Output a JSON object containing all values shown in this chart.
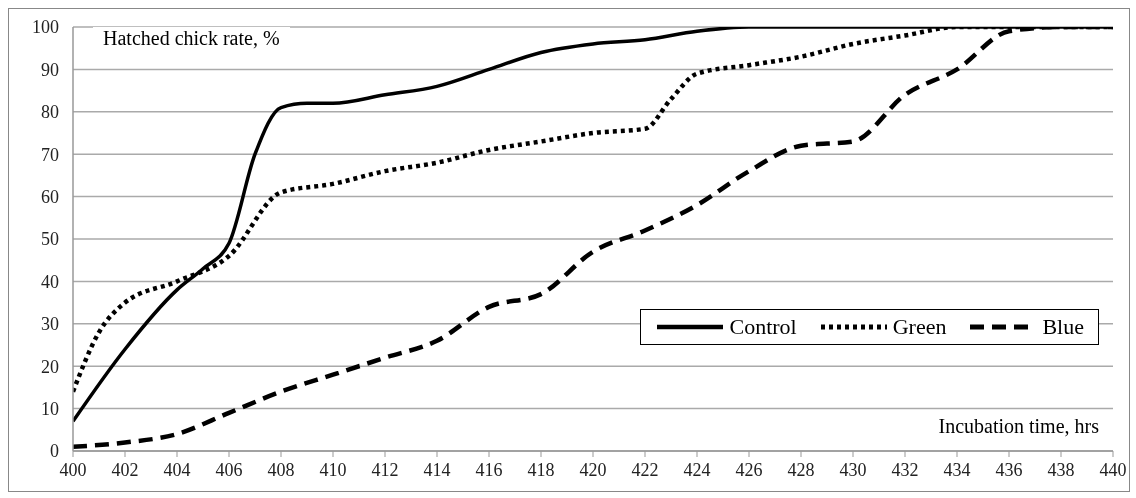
{
  "chart_data": {
    "type": "line",
    "xlabel": "Incubation time, hrs",
    "ylabel": "Hatched chick rate, %",
    "xlim": [
      400,
      440
    ],
    "xticks": [
      400,
      402,
      404,
      406,
      408,
      410,
      412,
      414,
      416,
      418,
      420,
      422,
      424,
      426,
      428,
      430,
      432,
      434,
      436,
      438,
      440
    ],
    "ylim": [
      0,
      100
    ],
    "yticks": [
      0,
      10,
      20,
      30,
      40,
      50,
      60,
      70,
      80,
      90,
      100
    ],
    "grid": "y",
    "legend": "right",
    "marker": "none",
    "series": [
      {
        "name": "Control",
        "color": "#000000",
        "line_style": "solid",
        "x": [
          400,
          402,
          404,
          405,
          406,
          407,
          408,
          409,
          410,
          412,
          414,
          416,
          418,
          420,
          422,
          424,
          426,
          428,
          430,
          432,
          434,
          436,
          438,
          440
        ],
        "values": [
          7,
          24,
          38,
          43,
          49,
          70,
          81,
          82,
          82,
          84,
          86,
          90,
          94,
          96,
          97,
          99,
          100,
          100,
          100,
          100,
          100,
          100,
          100,
          100
        ]
      },
      {
        "name": "Green",
        "color": "#000000",
        "line_style": "dotted",
        "x": [
          400,
          401,
          402,
          404,
          406,
          408,
          410,
          412,
          414,
          416,
          418,
          420,
          422,
          423,
          424,
          426,
          428,
          430,
          432,
          434,
          436,
          438,
          440
        ],
        "values": [
          14,
          28,
          35,
          40,
          46,
          61,
          63,
          66,
          68,
          71,
          73,
          75,
          76,
          83,
          89,
          91,
          93,
          96,
          98,
          100,
          100,
          100,
          100
        ]
      },
      {
        "name": "Blue",
        "color": "#000000",
        "line_style": "dashed",
        "x": [
          400,
          402,
          404,
          406,
          408,
          410,
          412,
          414,
          416,
          418,
          420,
          422,
          424,
          426,
          428,
          430,
          432,
          434,
          436,
          438,
          440
        ],
        "values": [
          1,
          2,
          4,
          9,
          14,
          18,
          22,
          26,
          34,
          37,
          47,
          52,
          58,
          66,
          72,
          73,
          84,
          90,
          99,
          100,
          100
        ]
      }
    ]
  }
}
